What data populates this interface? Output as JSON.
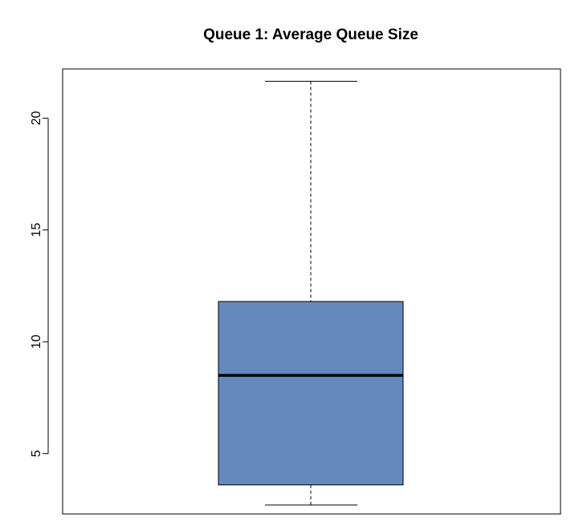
{
  "chart_data": {
    "type": "box",
    "title": "Queue 1: Average Queue Size",
    "xlabel": "",
    "ylabel": "",
    "ylim": [
      2.3,
      22.2
    ],
    "yticks": [
      5,
      10,
      15,
      20
    ],
    "tick_labels": [
      "5",
      "10",
      "15",
      "20"
    ],
    "grid": false,
    "legend": "none",
    "box": {
      "whisker_low": 2.7,
      "q1": 3.6,
      "median": 8.5,
      "q3": 11.8,
      "whisker_high": 21.65
    },
    "colors": {
      "box_fill": "#6689BD",
      "box_stroke": "#000000",
      "median": "#000000",
      "axis": "#000000"
    }
  }
}
